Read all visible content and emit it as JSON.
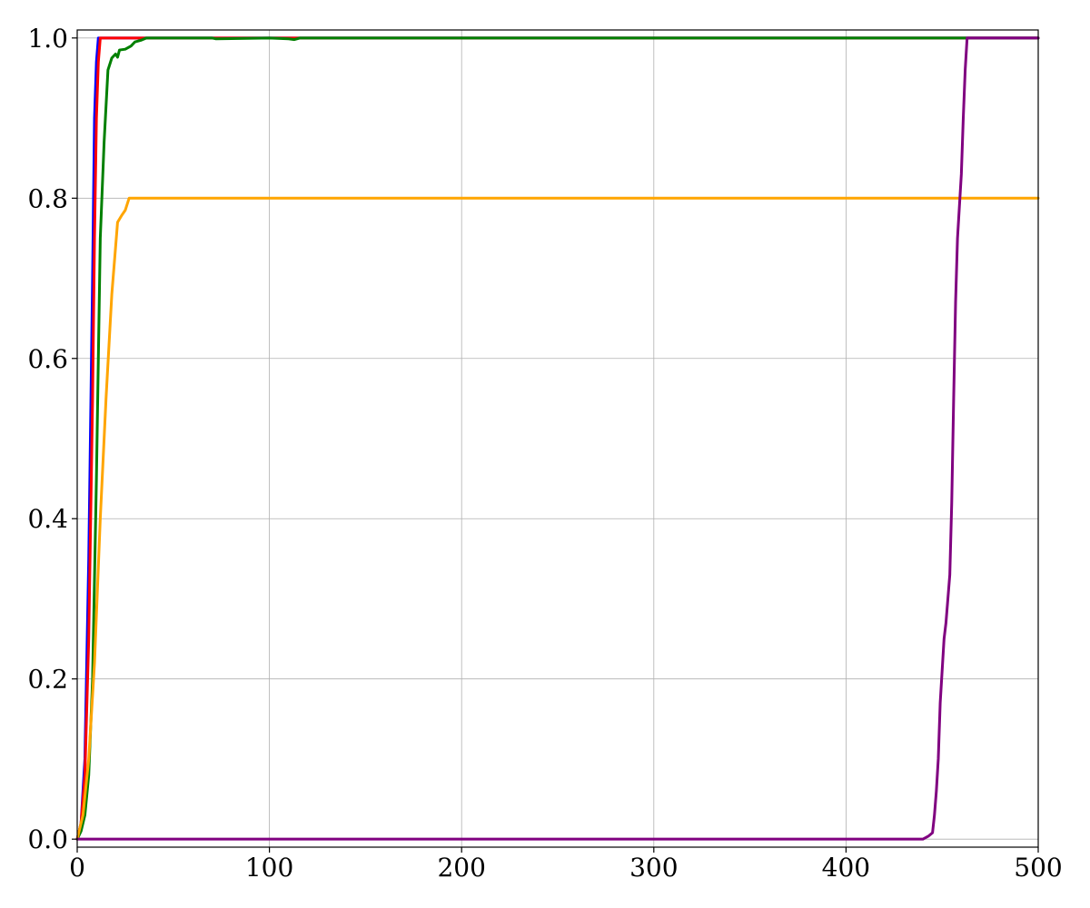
{
  "chart_data": {
    "type": "line",
    "title": "",
    "xlabel": "",
    "ylabel": "",
    "xlim": [
      0,
      500
    ],
    "ylim": [
      -0.01,
      1.01
    ],
    "x_ticks": [
      0,
      100,
      200,
      300,
      400,
      500
    ],
    "x_tick_labels": [
      "0",
      "100",
      "200",
      "300",
      "400",
      "500"
    ],
    "y_ticks": [
      0.0,
      0.2,
      0.4,
      0.6,
      0.8,
      1.0
    ],
    "y_tick_labels": [
      "0.0",
      "0.2",
      "0.4",
      "0.6",
      "0.8",
      "1.0"
    ],
    "grid": true,
    "legend": "none",
    "series": [
      {
        "color": "#0000ff",
        "points": [
          [
            0,
            0.0
          ],
          [
            2,
            0.02
          ],
          [
            4,
            0.1
          ],
          [
            6,
            0.35
          ],
          [
            8,
            0.7
          ],
          [
            9,
            0.9
          ],
          [
            10,
            0.97
          ],
          [
            11,
            1.0
          ],
          [
            500,
            1.0
          ]
        ]
      },
      {
        "color": "#ff0000",
        "points": [
          [
            0,
            0.0
          ],
          [
            2,
            0.02
          ],
          [
            4,
            0.08
          ],
          [
            6,
            0.25
          ],
          [
            8,
            0.55
          ],
          [
            9,
            0.75
          ],
          [
            10,
            0.9
          ],
          [
            11,
            0.97
          ],
          [
            12,
            1.0
          ],
          [
            500,
            1.0
          ]
        ]
      },
      {
        "color": "#008000",
        "points": [
          [
            0,
            0.0
          ],
          [
            2,
            0.01
          ],
          [
            4,
            0.03
          ],
          [
            6,
            0.08
          ],
          [
            8,
            0.2
          ],
          [
            10,
            0.45
          ],
          [
            12,
            0.75
          ],
          [
            14,
            0.87
          ],
          [
            16,
            0.96
          ],
          [
            18,
            0.975
          ],
          [
            20,
            0.98
          ],
          [
            21,
            0.976
          ],
          [
            22,
            0.985
          ],
          [
            25,
            0.986
          ],
          [
            28,
            0.99
          ],
          [
            30,
            0.995
          ],
          [
            33,
            0.997
          ],
          [
            36,
            1.0
          ],
          [
            70,
            1.0
          ],
          [
            72,
            0.999
          ],
          [
            100,
            1.0
          ],
          [
            110,
            0.999
          ],
          [
            113,
            0.998
          ],
          [
            116,
            1.0
          ],
          [
            500,
            1.0
          ]
        ]
      },
      {
        "color": "#ffa500",
        "points": [
          [
            0,
            0.0
          ],
          [
            3,
            0.03
          ],
          [
            6,
            0.1
          ],
          [
            9,
            0.22
          ],
          [
            12,
            0.4
          ],
          [
            15,
            0.55
          ],
          [
            18,
            0.68
          ],
          [
            20,
            0.74
          ],
          [
            21,
            0.77
          ],
          [
            23,
            0.778
          ],
          [
            25,
            0.785
          ],
          [
            27,
            0.8
          ],
          [
            500,
            0.8
          ]
        ]
      },
      {
        "color": "#800080",
        "points": [
          [
            0,
            0.0
          ],
          [
            440,
            0.0
          ],
          [
            443,
            0.004
          ],
          [
            445,
            0.008
          ],
          [
            446,
            0.03
          ],
          [
            447,
            0.06
          ],
          [
            448,
            0.1
          ],
          [
            449,
            0.17
          ],
          [
            451,
            0.25
          ],
          [
            452,
            0.27
          ],
          [
            454,
            0.33
          ],
          [
            455,
            0.42
          ],
          [
            456,
            0.55
          ],
          [
            457,
            0.67
          ],
          [
            458,
            0.75
          ],
          [
            460,
            0.83
          ],
          [
            461,
            0.9
          ],
          [
            462,
            0.96
          ],
          [
            463,
            1.0
          ],
          [
            500,
            1.0
          ]
        ]
      }
    ]
  }
}
